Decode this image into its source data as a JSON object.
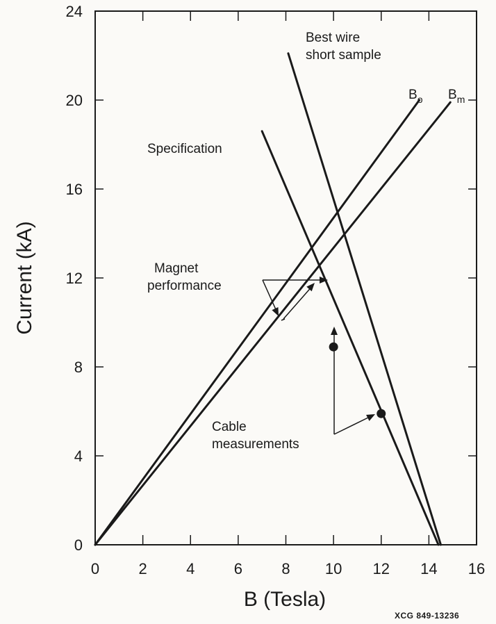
{
  "chart_data": {
    "type": "line",
    "xlabel": "B (Tesla)",
    "ylabel": "Current (kA)",
    "xlim": [
      0,
      16
    ],
    "ylim": [
      0,
      24
    ],
    "x_ticks": [
      "0",
      "2",
      "4",
      "6",
      "8",
      "10",
      "12",
      "14",
      "16"
    ],
    "y_ticks": [
      "0",
      "4",
      "8",
      "12",
      "16",
      "20",
      "24"
    ],
    "grid": false,
    "series": [
      {
        "name": "Bo",
        "x": [
          0,
          13.6
        ],
        "y": [
          0,
          20.0
        ]
      },
      {
        "name": "Bm",
        "x": [
          0,
          14.9
        ],
        "y": [
          0,
          19.9
        ]
      },
      {
        "name": "Specification",
        "x": [
          7.0,
          14.4
        ],
        "y": [
          18.6,
          0
        ]
      },
      {
        "name": "Best wire short sample",
        "x": [
          8.1,
          14.5
        ],
        "y": [
          22.1,
          0
        ]
      }
    ],
    "points": [
      {
        "x": 10.0,
        "y": 8.9
      },
      {
        "x": 12.0,
        "y": 5.9
      }
    ],
    "annotations": [
      {
        "id": "spec",
        "lines": [
          "Specification"
        ]
      },
      {
        "id": "best_wire",
        "lines": [
          "Best wire",
          "short sample"
        ]
      },
      {
        "id": "bo",
        "base": "B",
        "sub": "o"
      },
      {
        "id": "bm",
        "base": "B",
        "sub": "m"
      },
      {
        "id": "magnet",
        "lines": [
          "Magnet",
          "performance"
        ]
      },
      {
        "id": "cable",
        "lines": [
          "Cable",
          "measurements"
        ]
      }
    ],
    "credit": "XCG 849-13236"
  }
}
